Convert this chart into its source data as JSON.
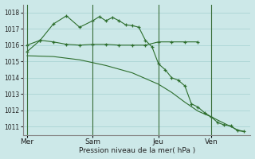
{
  "bg_color": "#cce8e8",
  "grid_color": "#aad4d4",
  "line_color": "#2d6e2d",
  "title": "Pression niveau de la mer( hPa )",
  "ylim": [
    1010.5,
    1018.5
  ],
  "yticks": [
    1011,
    1012,
    1013,
    1014,
    1015,
    1016,
    1017,
    1018
  ],
  "day_labels": [
    "Mer",
    "Sam",
    "Jeu",
    "Ven"
  ],
  "mer_x": 0,
  "sam_x": 5,
  "jeu_x": 10,
  "ven_x": 14,
  "xlim": [
    -0.3,
    17
  ],
  "line_flat_x": [
    0,
    1,
    2,
    3,
    4,
    5,
    6,
    7,
    8,
    9,
    10,
    11,
    12,
    13
  ],
  "line_flat_y": [
    1015.6,
    1016.3,
    1016.2,
    1016.05,
    1016.0,
    1016.05,
    1016.05,
    1016.0,
    1016.0,
    1016.0,
    1016.2,
    1016.2,
    1016.2,
    1016.2
  ],
  "line_wavy_x": [
    0,
    1,
    2,
    3,
    4,
    5,
    5.5,
    6,
    6.5,
    7,
    7.5,
    8,
    8.5,
    9,
    9.5,
    10,
    10.5,
    11,
    11.5,
    12,
    12.5,
    13,
    13.5,
    14,
    14.5,
    15,
    15.5,
    16,
    16.5
  ],
  "line_wavy_y": [
    1016.0,
    1016.3,
    1017.3,
    1017.8,
    1017.1,
    1017.5,
    1017.75,
    1017.5,
    1017.7,
    1017.5,
    1017.25,
    1017.2,
    1017.1,
    1016.3,
    1015.9,
    1014.85,
    1014.5,
    1014.0,
    1013.85,
    1013.5,
    1012.4,
    1012.2,
    1011.85,
    1011.6,
    1011.25,
    1011.1,
    1011.05,
    1010.75,
    1010.7
  ],
  "line_decline_x": [
    0,
    2,
    4,
    6,
    8,
    10,
    11,
    12,
    13,
    14,
    15,
    16,
    16.5
  ],
  "line_decline_y": [
    1015.35,
    1015.3,
    1015.1,
    1014.75,
    1014.3,
    1013.6,
    1013.1,
    1012.5,
    1011.95,
    1011.6,
    1011.2,
    1010.8,
    1010.7
  ]
}
